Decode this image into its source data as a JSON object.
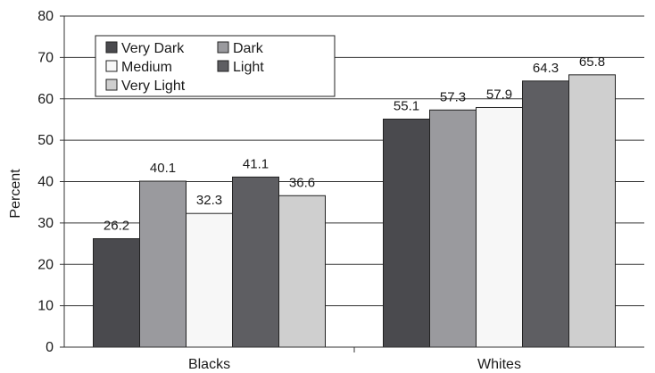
{
  "chart_data": {
    "type": "bar",
    "title": "",
    "xlabel": "",
    "ylabel": "Percent",
    "ylim": [
      0,
      80
    ],
    "yticks": [
      0,
      10,
      20,
      30,
      40,
      50,
      60,
      70,
      80
    ],
    "grid": true,
    "legend_position": "top-left",
    "categories": [
      "Blacks",
      "Whites"
    ],
    "series": [
      {
        "name": "Very Dark",
        "color": "#4a4a4e",
        "values": [
          26.2,
          55.1
        ]
      },
      {
        "name": "Dark",
        "color": "#9a9a9e",
        "values": [
          40.1,
          57.3
        ]
      },
      {
        "name": "Medium",
        "color": "#f7f7f7",
        "values": [
          32.3,
          57.9
        ]
      },
      {
        "name": "Light",
        "color": "#5e5e62",
        "values": [
          41.1,
          64.3
        ]
      },
      {
        "name": "Very Light",
        "color": "#cfcfcf",
        "values": [
          36.6,
          65.8
        ]
      }
    ]
  }
}
